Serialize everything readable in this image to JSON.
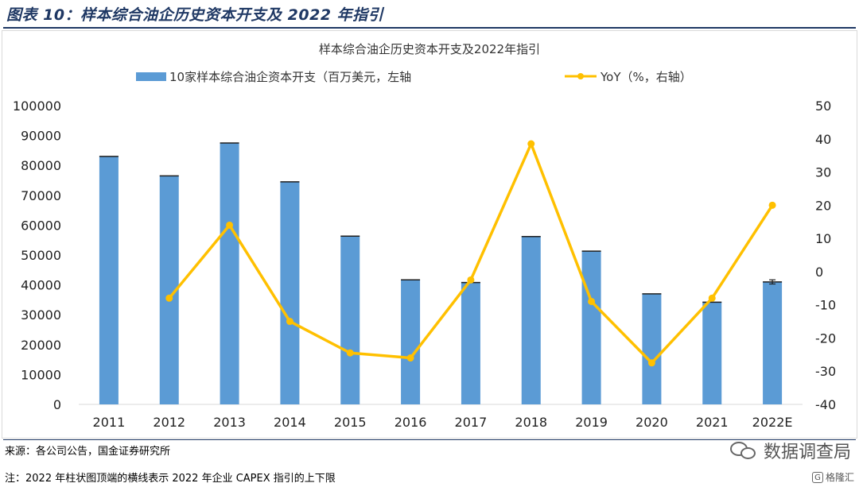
{
  "header": {
    "title": "图表 10：样本综合油企历史资本开支及 2022 年指引"
  },
  "chart_data": {
    "type": "bar+line",
    "title": "样本综合油企历史资本开支及2022年指引",
    "categories": [
      "2011",
      "2012",
      "2013",
      "2014",
      "2015",
      "2016",
      "2017",
      "2018",
      "2019",
      "2020",
      "2021",
      "2022E"
    ],
    "series": [
      {
        "name": "10家样本综合油企资本开支（百万美元，左轴",
        "type": "bar",
        "axis": "left",
        "color": "#5b9bd5",
        "values": [
          83000,
          76500,
          87500,
          74500,
          56300,
          41700,
          40800,
          56200,
          51300,
          37000,
          34200,
          41000
        ],
        "error_bar": {
          "index": 11,
          "low": 40300,
          "high": 41700
        }
      },
      {
        "name": "YoY（%，右轴）",
        "type": "line",
        "axis": "right",
        "color": "#ffc000",
        "values": [
          null,
          -8,
          14,
          -15,
          -24.5,
          -26,
          -2.5,
          38.5,
          -9,
          -27.5,
          -8,
          20
        ]
      }
    ],
    "left_axis": {
      "min": 0,
      "max": 100000,
      "ticks": [
        "100000",
        "90000",
        "80000",
        "70000",
        "60000",
        "50000",
        "40000",
        "30000",
        "20000",
        "10000",
        "0"
      ]
    },
    "right_axis": {
      "min": -40,
      "max": 50,
      "ticks": [
        "50",
        "40",
        "30",
        "20",
        "10",
        "0",
        "-10",
        "-20",
        "-30",
        "-40"
      ]
    },
    "grid": false,
    "legend_position": "top"
  },
  "footer": {
    "source": "来源：各公司公告，国金证券研究所",
    "note": "注：2022 年柱状图顶端的横线表示 2022 年企业 CAPEX 指引的上下限"
  },
  "watermark": {
    "text": "数据调查局",
    "logo": "格隆汇"
  }
}
